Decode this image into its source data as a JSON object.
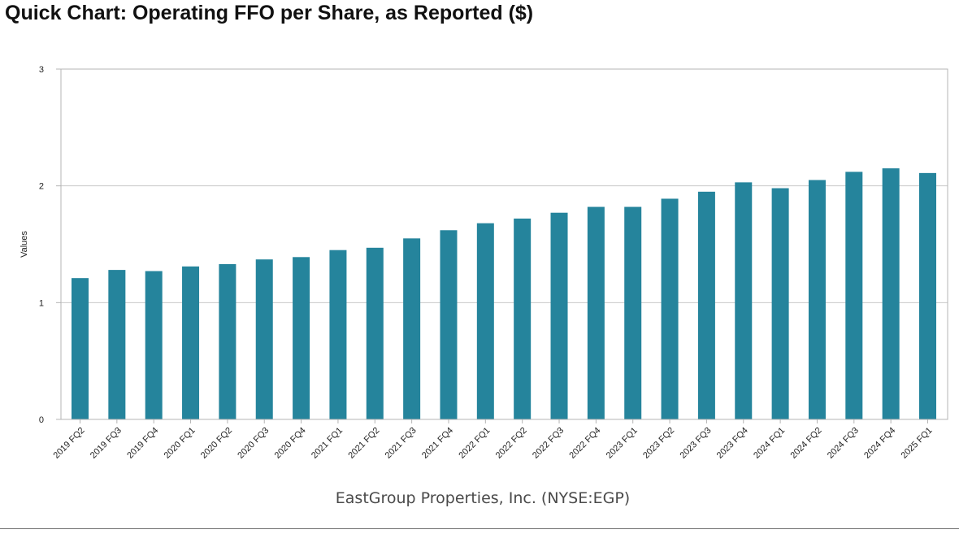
{
  "page": {
    "title": "Quick Chart: Operating FFO per Share, as Reported ($)"
  },
  "chart_data": {
    "type": "bar",
    "title": "Quick Chart: Operating FFO per Share, as Reported ($)",
    "xlabel": "EastGroup Properties, Inc. (NYSE:EGP)",
    "ylabel": "Values",
    "ylim": [
      0,
      3
    ],
    "yticks": [
      0,
      1,
      2,
      3
    ],
    "grid": true,
    "legend": "none",
    "bar_color": "#25849c",
    "categories": [
      "2019 FQ2",
      "2019 FQ3",
      "2019 FQ4",
      "2020 FQ1",
      "2020 FQ2",
      "2020 FQ3",
      "2020 FQ4",
      "2021 FQ1",
      "2021 FQ2",
      "2021 FQ3",
      "2021 FQ4",
      "2022 FQ1",
      "2022 FQ2",
      "2022 FQ3",
      "2022 FQ4",
      "2023 FQ1",
      "2023 FQ2",
      "2023 FQ3",
      "2023 FQ4",
      "2024 FQ1",
      "2024 FQ2",
      "2024 FQ3",
      "2024 FQ4",
      "2025 FQ1"
    ],
    "values": [
      1.21,
      1.28,
      1.27,
      1.31,
      1.33,
      1.37,
      1.39,
      1.45,
      1.47,
      1.55,
      1.62,
      1.68,
      1.72,
      1.77,
      1.82,
      1.82,
      1.89,
      1.95,
      2.03,
      1.98,
      2.05,
      2.12,
      2.15,
      2.11
    ]
  }
}
